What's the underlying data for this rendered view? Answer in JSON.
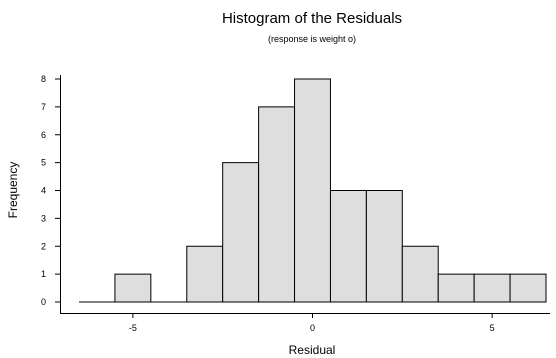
{
  "chart_data": {
    "type": "bar",
    "title": "Histogram of the Residuals",
    "subtitle": "(response is weight o)",
    "xlabel": "Residual",
    "ylabel": "Frequency",
    "bin_width": 1,
    "bins": [
      {
        "center": -5,
        "count": 1
      },
      {
        "center": -4,
        "count": 0
      },
      {
        "center": -3,
        "count": 2
      },
      {
        "center": -2,
        "count": 5
      },
      {
        "center": -1,
        "count": 7
      },
      {
        "center": 0,
        "count": 8
      },
      {
        "center": 1,
        "count": 4
      },
      {
        "center": 2,
        "count": 4
      },
      {
        "center": 3,
        "count": 2
      },
      {
        "center": 4,
        "count": 1
      },
      {
        "center": 5,
        "count": 1
      },
      {
        "center": 6,
        "count": 1
      }
    ],
    "xlim": [
      -6.5,
      6.5
    ],
    "ylim": [
      0,
      8
    ],
    "x_ticks": [
      -5,
      0,
      5
    ],
    "y_ticks": [
      0,
      1,
      2,
      3,
      4,
      5,
      6,
      7,
      8
    ],
    "x_tick_labels": [
      "-5",
      "0",
      "5"
    ],
    "y_tick_labels": [
      "0",
      "1",
      "2",
      "3",
      "4",
      "5",
      "6",
      "7",
      "8"
    ],
    "grid": false,
    "bar_fill": "#dedede",
    "bar_stroke": "#000000"
  }
}
